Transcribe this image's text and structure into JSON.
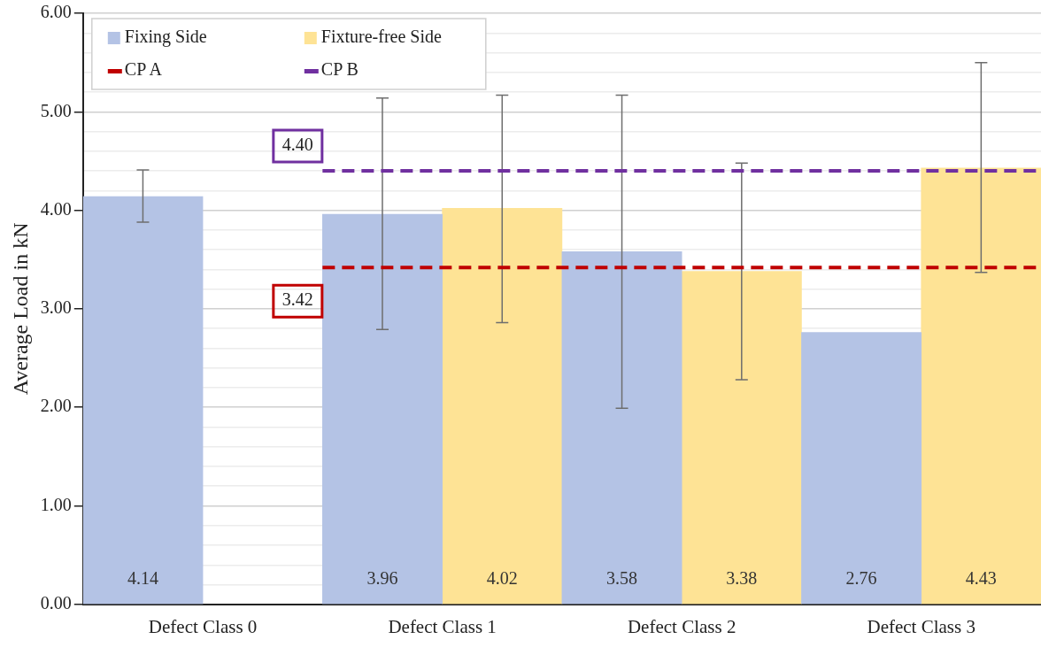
{
  "chart_data": {
    "type": "bar",
    "ylabel": "Average Load in kN",
    "categories": [
      "Defect Class 0",
      "Defect Class 1",
      "Defect Class 2",
      "Defect Class 3"
    ],
    "series": [
      {
        "name": "Fixing Side",
        "color": "#b4c3e5",
        "values": [
          4.14,
          3.96,
          3.58,
          2.76
        ],
        "errors": [
          [
            3.88,
            4.41
          ],
          [
            2.79,
            5.14
          ],
          [
            1.99,
            5.17
          ],
          null
        ]
      },
      {
        "name": "Fixture-free Side",
        "color": "#fee395",
        "values": [
          null,
          4.02,
          3.38,
          4.43
        ],
        "errors": [
          null,
          [
            2.86,
            5.17
          ],
          [
            2.28,
            4.48
          ],
          [
            3.37,
            5.5
          ]
        ]
      }
    ],
    "ylim": [
      0,
      6
    ],
    "yticks": [
      {
        "value": 0,
        "label": "0.00"
      },
      {
        "value": 0.2,
        "label": null
      },
      {
        "value": 0.4,
        "label": null
      },
      {
        "value": 0.6,
        "label": null
      },
      {
        "value": 0.8,
        "label": null
      },
      {
        "value": 1,
        "label": "1.00"
      },
      {
        "value": 1.2,
        "label": null
      },
      {
        "value": 1.4,
        "label": null
      },
      {
        "value": 1.6,
        "label": null
      },
      {
        "value": 1.8,
        "label": null
      },
      {
        "value": 2,
        "label": "2.00"
      },
      {
        "value": 2.2,
        "label": null
      },
      {
        "value": 2.4,
        "label": null
      },
      {
        "value": 2.6,
        "label": null
      },
      {
        "value": 2.8,
        "label": null
      },
      {
        "value": 3,
        "label": "3.00"
      },
      {
        "value": 3.2,
        "label": null
      },
      {
        "value": 3.4,
        "label": null
      },
      {
        "value": 3.6,
        "label": null
      },
      {
        "value": 3.8,
        "label": null
      },
      {
        "value": 4,
        "label": "4.00"
      },
      {
        "value": 4.2,
        "label": null
      },
      {
        "value": 4.4,
        "label": null
      },
      {
        "value": 4.6,
        "label": null
      },
      {
        "value": 4.8,
        "label": null
      },
      {
        "value": 5,
        "label": "5.00"
      },
      {
        "value": 5.2,
        "label": null
      },
      {
        "value": 5.4,
        "label": null
      },
      {
        "value": 5.6,
        "label": null
      },
      {
        "value": 5.8,
        "label": null
      },
      {
        "value": 6,
        "label": "6.00"
      }
    ],
    "ref_lines": [
      {
        "axis": "y",
        "value": 3.42,
        "label": "CP A",
        "color": "#c00000",
        "line_style": "dashed"
      },
      {
        "axis": "y",
        "value": 4.4,
        "label": "CP B",
        "color": "#7030a0",
        "line_style": "dashed"
      }
    ],
    "annotations": [
      "3.42",
      "4.40"
    ],
    "data_labels": true,
    "grid": "y",
    "legend": "top left"
  }
}
